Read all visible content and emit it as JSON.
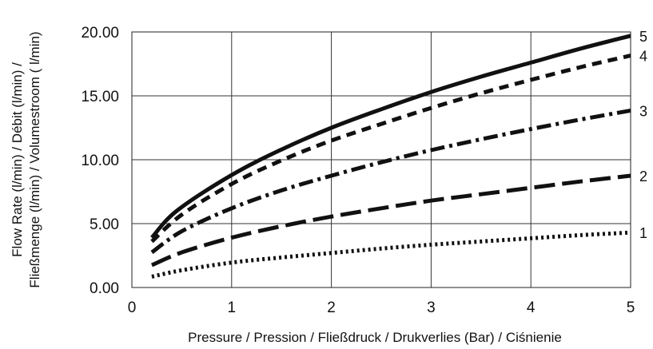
{
  "chart_data": {
    "type": "line",
    "xlabel": "Pressure / Pression / Fließdruck / Drukverlies (Bar) / Ciśnienie",
    "ylabel_line1": "Flow Rate (l/min) / Débit (l/min) /",
    "ylabel_line2": "Fließmenge (l/min) / Volumestroom ( l/min)",
    "xlim": [
      0,
      5
    ],
    "ylim": [
      0,
      20
    ],
    "x_ticks": [
      "0",
      "1",
      "2",
      "3",
      "4",
      "5"
    ],
    "y_ticks": [
      "0.00",
      "5.00",
      "10.00",
      "15.00",
      "20.00"
    ],
    "grid": true,
    "series": [
      {
        "name": "1",
        "style": "dotted",
        "points": [
          [
            0.2,
            0.85
          ],
          [
            0.5,
            1.35
          ],
          [
            1,
            1.95
          ],
          [
            1.5,
            2.35
          ],
          [
            2,
            2.7
          ],
          [
            2.5,
            3.05
          ],
          [
            3,
            3.35
          ],
          [
            3.5,
            3.6
          ],
          [
            4,
            3.85
          ],
          [
            4.5,
            4.1
          ],
          [
            5,
            4.3
          ]
        ]
      },
      {
        "name": "2",
        "style": "long-dash",
        "points": [
          [
            0.2,
            1.75
          ],
          [
            0.5,
            2.75
          ],
          [
            1,
            3.9
          ],
          [
            1.5,
            4.8
          ],
          [
            2,
            5.55
          ],
          [
            2.5,
            6.2
          ],
          [
            3,
            6.8
          ],
          [
            3.5,
            7.3
          ],
          [
            4,
            7.8
          ],
          [
            4.5,
            8.3
          ],
          [
            5,
            8.75
          ]
        ]
      },
      {
        "name": "3",
        "style": "dash-dot",
        "points": [
          [
            0.2,
            2.75
          ],
          [
            0.5,
            4.4
          ],
          [
            1,
            6.2
          ],
          [
            1.5,
            7.6
          ],
          [
            2,
            8.75
          ],
          [
            2.5,
            9.8
          ],
          [
            3,
            10.75
          ],
          [
            3.5,
            11.6
          ],
          [
            4,
            12.4
          ],
          [
            4.5,
            13.15
          ],
          [
            5,
            13.85
          ]
        ]
      },
      {
        "name": "4",
        "style": "dashed",
        "points": [
          [
            0.2,
            3.6
          ],
          [
            0.5,
            5.7
          ],
          [
            1,
            8.1
          ],
          [
            1.5,
            9.95
          ],
          [
            2,
            11.5
          ],
          [
            2.5,
            12.8
          ],
          [
            3,
            14.05
          ],
          [
            3.5,
            15.2
          ],
          [
            4,
            16.25
          ],
          [
            4.5,
            17.25
          ],
          [
            5,
            18.15
          ]
        ]
      },
      {
        "name": "5",
        "style": "solid",
        "points": [
          [
            0.2,
            3.9
          ],
          [
            0.45,
            6.0
          ],
          [
            1,
            8.8
          ],
          [
            1.5,
            10.8
          ],
          [
            2,
            12.5
          ],
          [
            2.5,
            13.95
          ],
          [
            3,
            15.3
          ],
          [
            3.5,
            16.5
          ],
          [
            4,
            17.6
          ],
          [
            4.5,
            18.7
          ],
          [
            5,
            19.7
          ]
        ]
      }
    ]
  }
}
